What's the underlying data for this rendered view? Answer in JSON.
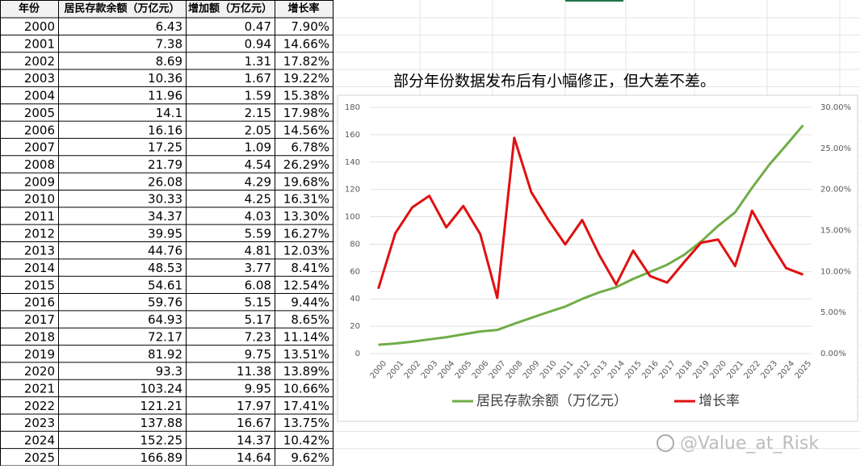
{
  "table": {
    "header": [
      "年份",
      "居民存款余额（万亿元）",
      "增加额（万亿元）",
      "增长率"
    ],
    "rows": [
      [
        "2000",
        "6.43",
        "0.47",
        "7.90%"
      ],
      [
        "2001",
        "7.38",
        "0.94",
        "14.66%"
      ],
      [
        "2002",
        "8.69",
        "1.31",
        "17.82%"
      ],
      [
        "2003",
        "10.36",
        "1.67",
        "19.22%"
      ],
      [
        "2004",
        "11.96",
        "1.59",
        "15.38%"
      ],
      [
        "2005",
        "14.1",
        "2.15",
        "17.98%"
      ],
      [
        "2006",
        "16.16",
        "2.05",
        "14.56%"
      ],
      [
        "2007",
        "17.25",
        "1.09",
        "6.78%"
      ],
      [
        "2008",
        "21.79",
        "4.54",
        "26.29%"
      ],
      [
        "2009",
        "26.08",
        "4.29",
        "19.68%"
      ],
      [
        "2010",
        "30.33",
        "4.25",
        "16.31%"
      ],
      [
        "2011",
        "34.37",
        "4.03",
        "13.30%"
      ],
      [
        "2012",
        "39.95",
        "5.59",
        "16.27%"
      ],
      [
        "2013",
        "44.76",
        "4.81",
        "12.03%"
      ],
      [
        "2014",
        "48.53",
        "3.77",
        "8.41%"
      ],
      [
        "2015",
        "54.61",
        "6.08",
        "12.54%"
      ],
      [
        "2016",
        "59.76",
        "5.15",
        "9.44%"
      ],
      [
        "2017",
        "64.93",
        "5.17",
        "8.65%"
      ],
      [
        "2018",
        "72.17",
        "7.23",
        "11.14%"
      ],
      [
        "2019",
        "81.92",
        "9.75",
        "13.51%"
      ],
      [
        "2020",
        "93.3",
        "11.38",
        "13.89%"
      ],
      [
        "2021",
        "103.24",
        "9.95",
        "10.66%"
      ],
      [
        "2022",
        "121.21",
        "17.97",
        "17.41%"
      ],
      [
        "2023",
        "137.88",
        "16.67",
        "13.75%"
      ],
      [
        "2024",
        "152.25",
        "14.37",
        "10.42%"
      ],
      [
        "2025",
        "166.89",
        "14.64",
        "9.62%"
      ]
    ]
  },
  "note": "部分年份数据发布后有小幅修正，但大差不差。",
  "watermark": "@Value_at_Risk",
  "chart_data": {
    "type": "line",
    "categories": [
      "2000",
      "2001",
      "2002",
      "2003",
      "2004",
      "2005",
      "2006",
      "2007",
      "2008",
      "2009",
      "2010",
      "2011",
      "2012",
      "2013",
      "2014",
      "2015",
      "2016",
      "2017",
      "2018",
      "2019",
      "2020",
      "2021",
      "2022",
      "2023",
      "2024",
      "2025"
    ],
    "series": [
      {
        "name": "居民存款余额（万亿元）",
        "color": "#70ad47",
        "values": [
          6.43,
          7.38,
          8.69,
          10.36,
          11.96,
          14.1,
          16.16,
          17.25,
          21.79,
          26.08,
          30.33,
          34.37,
          39.95,
          44.76,
          48.53,
          54.61,
          59.76,
          64.93,
          72.17,
          81.92,
          93.3,
          103.24,
          121.21,
          137.88,
          152.25,
          166.89
        ]
      },
      {
        "name": "增长率",
        "color": "#e01010",
        "axis": "y2",
        "values": [
          7.9,
          14.66,
          17.82,
          19.22,
          15.38,
          17.98,
          14.56,
          6.78,
          26.29,
          19.68,
          16.31,
          13.3,
          16.27,
          12.03,
          8.41,
          12.54,
          9.44,
          8.65,
          11.14,
          13.51,
          13.89,
          10.66,
          17.41,
          13.75,
          10.42,
          9.62
        ]
      }
    ],
    "ylim": [
      0,
      180
    ],
    "yticks": [
      0,
      20,
      40,
      60,
      80,
      100,
      120,
      140,
      160,
      180
    ],
    "y2lim": [
      0,
      30
    ],
    "y2ticks": [
      {
        "value": 0,
        "label": "0.00%"
      },
      {
        "value": 5,
        "label": "5.00%"
      },
      {
        "value": 10,
        "label": "10.00%"
      },
      {
        "value": 15,
        "label": "15.00%"
      },
      {
        "value": 20,
        "label": "20.00%"
      },
      {
        "value": 25,
        "label": "25.00%"
      },
      {
        "value": 30,
        "label": "30.00%"
      }
    ],
    "grid": true,
    "legend": "bottom"
  }
}
